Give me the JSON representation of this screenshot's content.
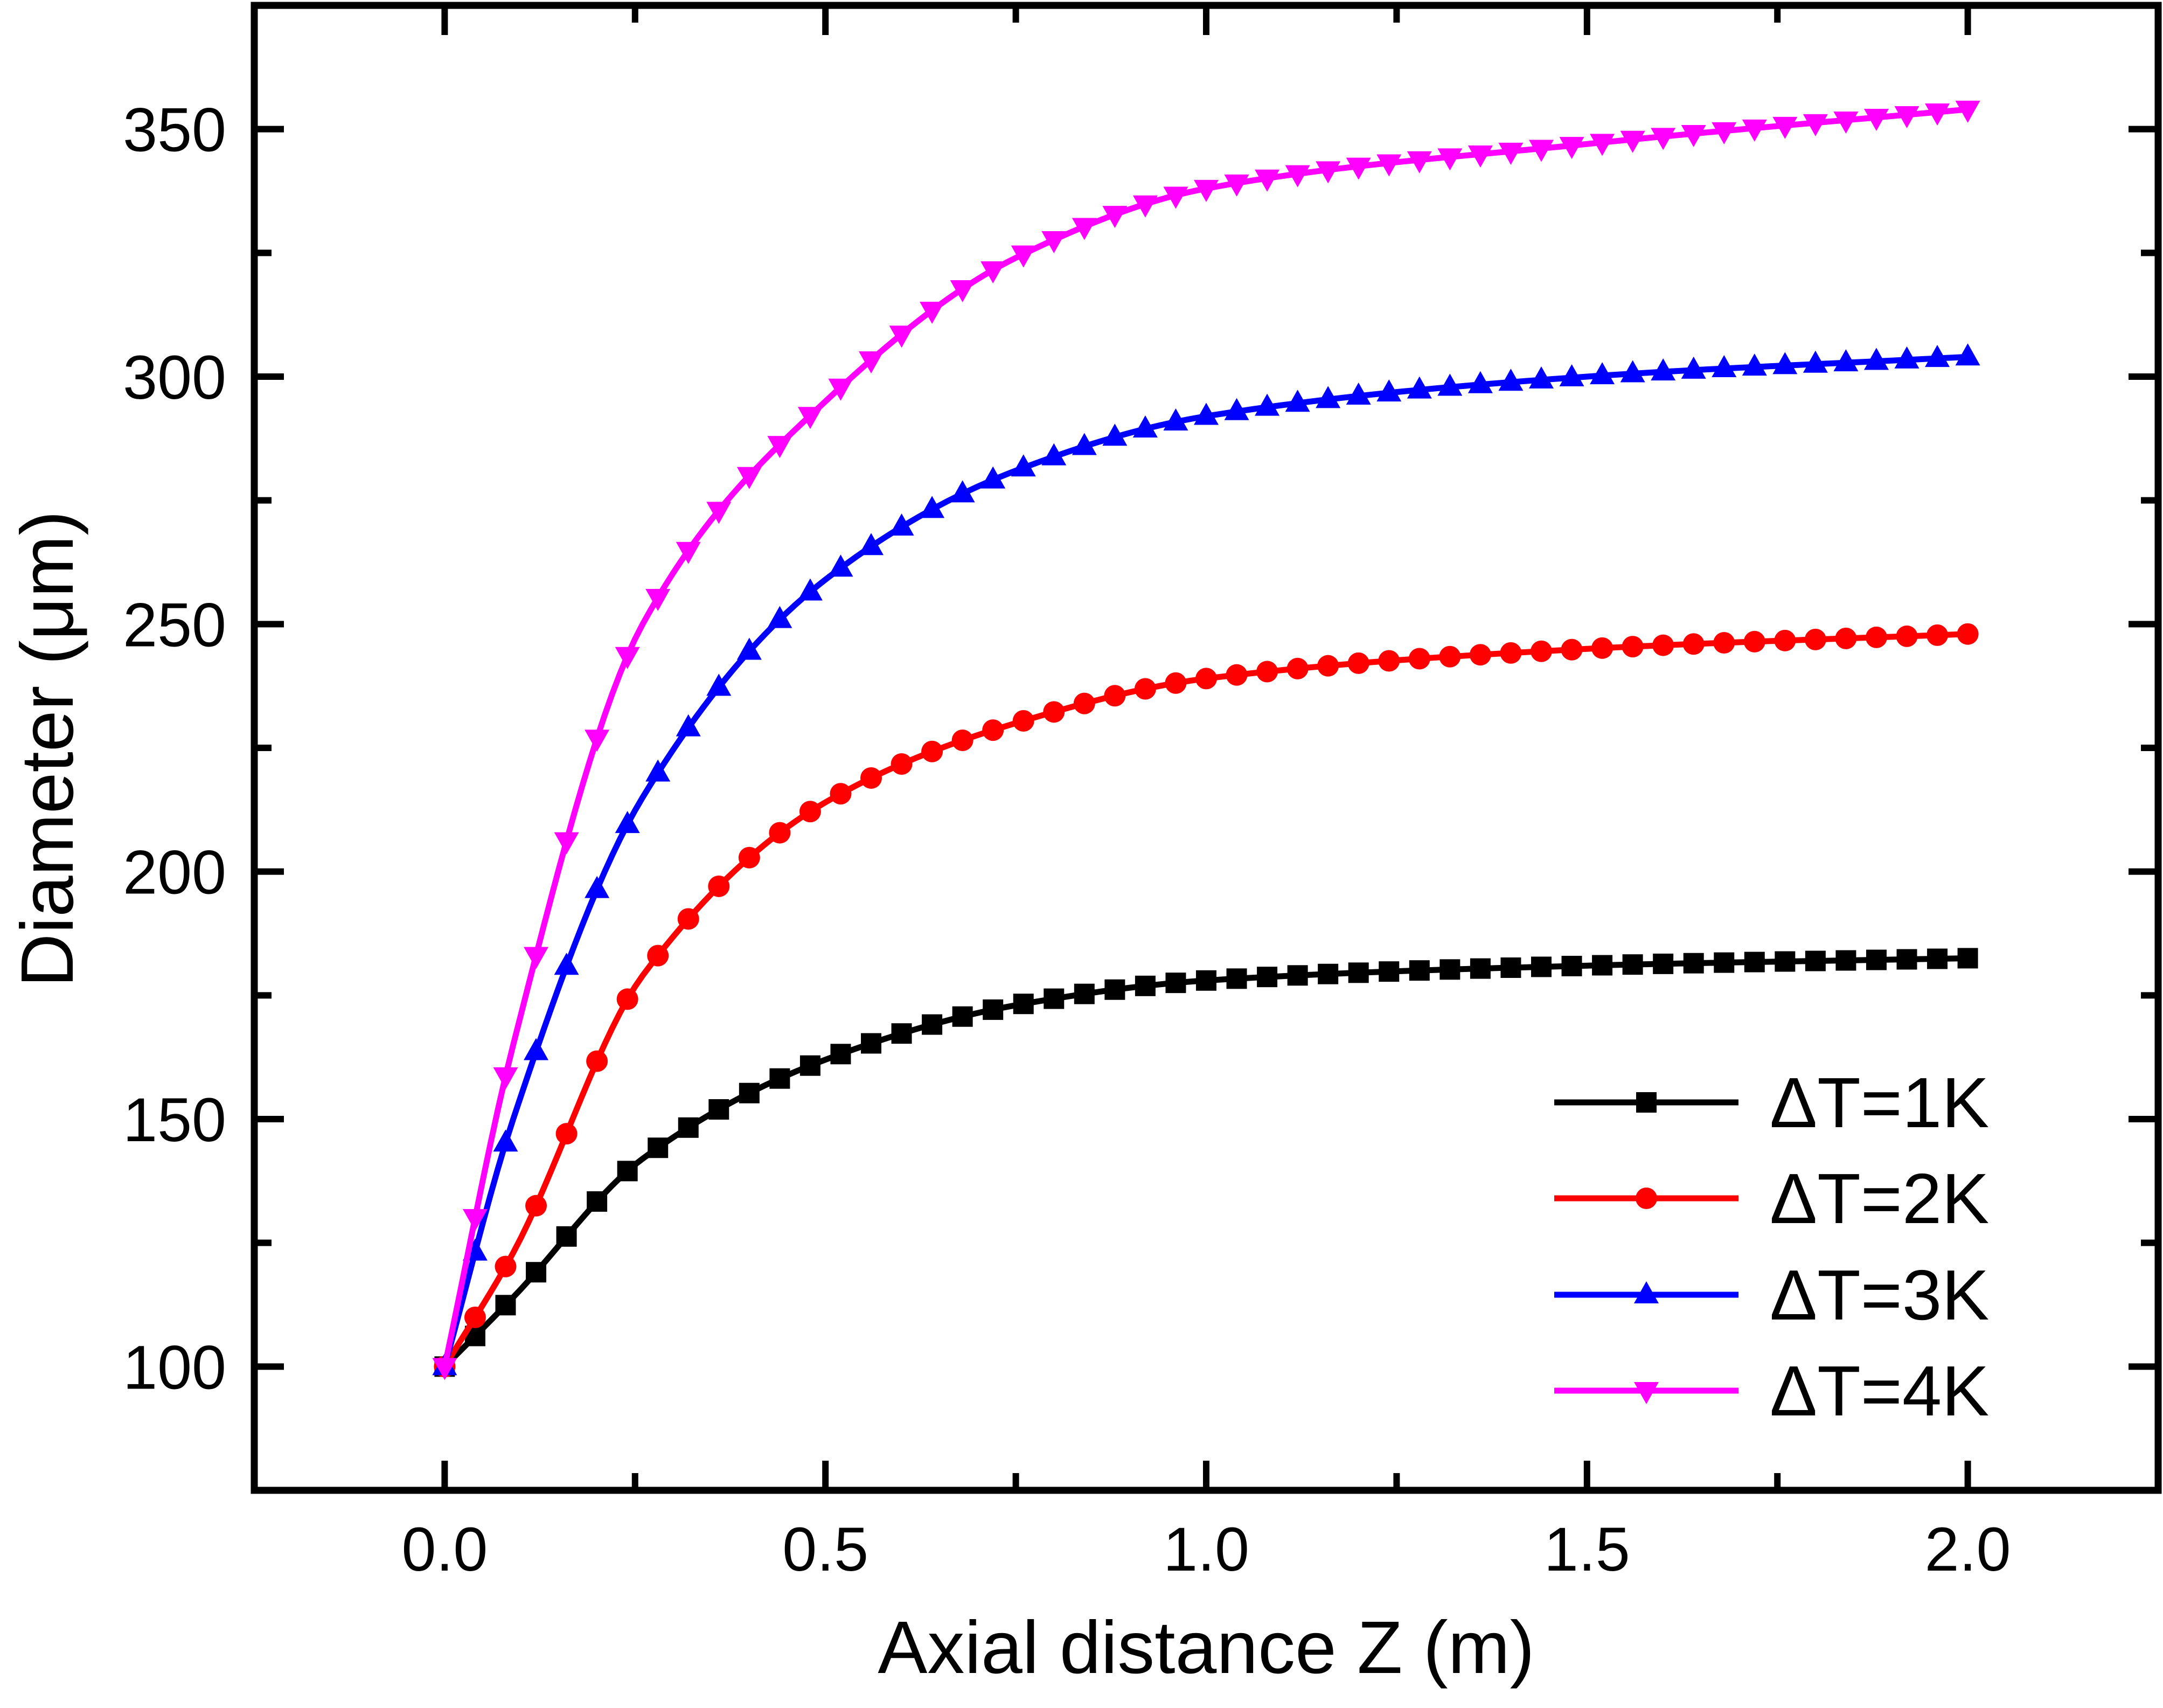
{
  "chart_data": {
    "type": "line",
    "title": "",
    "xlabel": "Axial distance Z (m)",
    "ylabel": "Diameter (μm)",
    "xlim": [
      -0.25,
      2.25
    ],
    "ylim": [
      75,
      375
    ],
    "grid": false,
    "x_major_ticks": [
      0.0,
      0.5,
      1.0,
      1.5,
      2.0
    ],
    "x_tick_labels": [
      "0.0",
      "0.5",
      "1.0",
      "1.5",
      "2.0"
    ],
    "y_major_ticks": [
      100,
      150,
      200,
      250,
      300,
      350
    ],
    "y_tick_labels": [
      "100",
      "150",
      "200",
      "250",
      "300",
      "350"
    ],
    "x_minor_step": 0.25,
    "y_minor_step": 25,
    "marker_step": 0.04,
    "x": [
      0.0,
      0.09,
      0.26,
      0.5,
      0.75,
      1.0,
      1.5,
      2.0
    ],
    "series": [
      {
        "name": "ΔT=1K",
        "color": "#000000",
        "marker": "square",
        "values": [
          100,
          114,
          142,
          162,
          173,
          178,
          181,
          182.5
        ]
      },
      {
        "name": "ΔT=2K",
        "color": "#ff0000",
        "marker": "circle",
        "values": [
          100,
          123,
          179,
          214,
          230,
          239,
          245,
          248
        ]
      },
      {
        "name": "ΔT=3K",
        "color": "#0000ff",
        "marker": "triangle-up",
        "values": [
          100,
          150,
          215,
          259,
          281,
          292,
          300,
          304
        ]
      },
      {
        "name": "ΔT=4K",
        "color": "#ff00ff",
        "marker": "triangle-down",
        "values": [
          100,
          165,
          250,
          295,
          324,
          338,
          347,
          354
        ]
      }
    ],
    "legend": {
      "position": "lower-right",
      "entries": [
        "ΔT=1K",
        "ΔT=2K",
        "ΔT=3K",
        "ΔT=4K"
      ]
    }
  }
}
